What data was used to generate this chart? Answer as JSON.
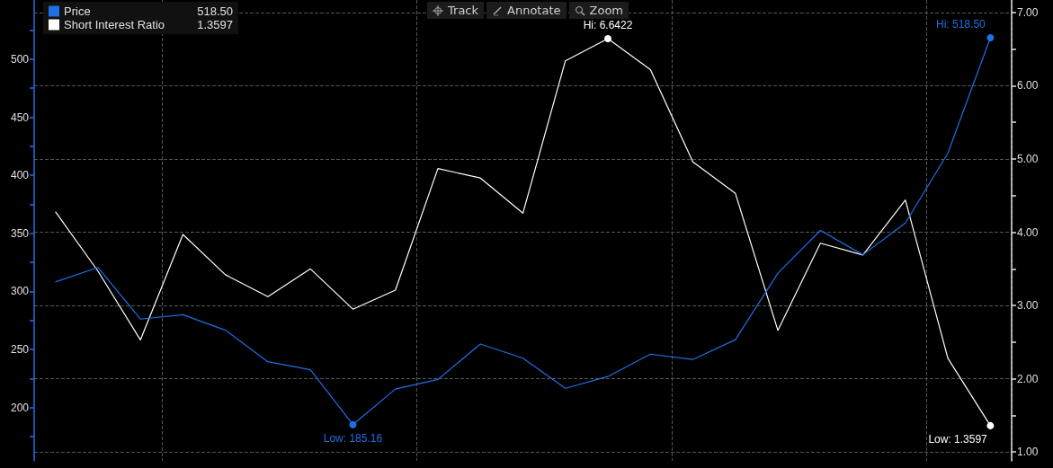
{
  "chart_data": {
    "type": "line",
    "categories": [
      null,
      null,
      null,
      null,
      null,
      null,
      null,
      null,
      null,
      null,
      null,
      null,
      null,
      null,
      null,
      null,
      null,
      null,
      null,
      null,
      null,
      null,
      null
    ],
    "series": [
      {
        "name": "Price",
        "color": "#1f6fe5",
        "values": [
          308.1,
          320.6,
          276.1,
          279.9,
          266.5,
          239.4,
          232.5,
          185.16,
          215.8,
          224.1,
          254.6,
          242.4,
          216.5,
          226.6,
          245.9,
          241.3,
          258.4,
          315.7,
          352.5,
          331.5,
          358.9,
          419.1,
          518.5
        ],
        "value_labels": [
          null,
          null,
          null,
          null,
          null,
          null,
          null,
          "Low: 185.16",
          null,
          null,
          null,
          null,
          null,
          null,
          null,
          null,
          null,
          null,
          null,
          null,
          null,
          null,
          "Hi: 518.50"
        ]
      },
      {
        "name": "Short Interest Ratio",
        "color": "#ffffff",
        "axis": "y2",
        "values": [
          4.28,
          3.47,
          2.53,
          3.97,
          3.42,
          3.12,
          3.5,
          2.95,
          3.21,
          4.87,
          4.74,
          4.26,
          6.34,
          6.6422,
          6.22,
          4.96,
          4.53,
          2.66,
          3.85,
          3.69,
          4.44,
          2.28,
          1.3597
        ],
        "value_labels": [
          null,
          null,
          null,
          null,
          null,
          null,
          null,
          null,
          null,
          null,
          null,
          null,
          null,
          "Hi: 6.6422",
          null,
          null,
          null,
          null,
          null,
          null,
          null,
          null,
          "Low: 1.3597"
        ]
      }
    ],
    "ylim": [
      154,
      551
    ],
    "yticks": [
      {
        "value": 175,
        "label": null
      },
      200,
      {
        "value": 225,
        "label": null
      },
      250,
      {
        "value": 275,
        "label": null
      },
      300,
      {
        "value": 325,
        "label": null
      },
      350,
      {
        "value": 375,
        "label": null
      },
      400,
      {
        "value": 425,
        "label": null
      },
      450,
      {
        "value": 475,
        "label": null
      },
      500,
      {
        "value": 525,
        "label": null
      }
    ],
    "y2lim": [
      0.88,
      7.17
    ],
    "y2ticks": [
      {
        "value": 1,
        "label": "1.00"
      },
      {
        "value": 1.5,
        "label": null
      },
      {
        "value": 2,
        "label": "2.00"
      },
      {
        "value": 2.5,
        "label": null
      },
      {
        "value": 3,
        "label": "3.00"
      },
      {
        "value": 3.5,
        "label": null
      },
      {
        "value": 4,
        "label": "4.00"
      },
      {
        "value": 4.5,
        "label": null
      },
      {
        "value": 5,
        "label": "5.00"
      },
      {
        "value": 5.5,
        "label": null
      },
      {
        "value": 6,
        "label": "6.00"
      },
      {
        "value": 6.5,
        "label": null
      },
      {
        "value": 7,
        "label": "7.00"
      }
    ],
    "annotations": [
      "518.50",
      "1.3597",
      "Track",
      "Annotate",
      "Zoom"
    ],
    "grid": true,
    "legend": "top left",
    "marker": "none",
    "line_style": "solid"
  }
}
